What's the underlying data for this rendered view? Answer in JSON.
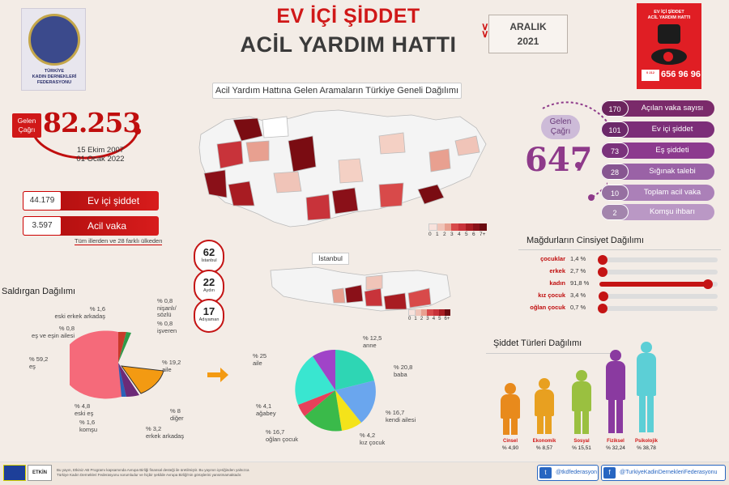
{
  "header": {
    "title_line1": "EV İÇİ ŞİDDET",
    "title_line2": "ACİL YARDIM HATTI",
    "month": "ARALIK",
    "year": "2021"
  },
  "logo": {
    "org_line1": "TÜRKİYE",
    "org_line2": "KADIN DERNEKLERİ",
    "org_line3": "FEDERASYONU"
  },
  "poster": {
    "title_line1": "EV İÇİ ŞİDDET",
    "title_line2": "ACİL YARDIM HATTI",
    "phone": "0 212 656 96 96"
  },
  "map_title": "Acil Yardım Hattına Gelen Aramaların Türkiye Geneli Dağılımı",
  "map_legend": [
    "0",
    "1",
    "2",
    "3",
    "4",
    "5",
    "6",
    "7+"
  ],
  "istanbul": {
    "label": "İstanbul",
    "legend": [
      "0",
      "1",
      "2",
      "3",
      "4",
      "5",
      "6+"
    ]
  },
  "total_calls": {
    "badge": "Gelen Çağrı",
    "value": "82.253",
    "date_from": "15 Ekim 2007",
    "date_to": "01 Ocak 2022",
    "items": [
      {
        "value": "44.179",
        "label": "Ev içi şiddet"
      },
      {
        "value": "3.597",
        "label": "Acil vaka"
      }
    ],
    "note": "Tüm illerden ve 28 farklı ülkeden"
  },
  "monthly_calls": {
    "badge": "Gelen Çağrı",
    "value": "647",
    "items": [
      {
        "value": "170",
        "label": "Açılan vaka sayısı",
        "color": "#7a2a6a"
      },
      {
        "value": "101",
        "label": "Ev içi şiddet",
        "color": "#7c2e78"
      },
      {
        "value": "73",
        "label": "Eş şiddeti",
        "color": "#8c3a8e"
      },
      {
        "value": "28",
        "label": "Sığınak talebi",
        "color": "#9a62a6"
      },
      {
        "value": "10",
        "label": "Toplam acil vaka",
        "color": "#ab80b8"
      },
      {
        "value": "2",
        "label": "Komşu ihbarı",
        "color": "#ba98c5"
      }
    ]
  },
  "city_stats": [
    {
      "value": "62",
      "label": "İstanbul"
    },
    {
      "value": "22",
      "label": "Aydın"
    },
    {
      "value": "17",
      "label": "Adıyaman"
    }
  ],
  "gender": {
    "title": "Mağdurların Cinsiyet Dağılımı",
    "rows": [
      {
        "label": "çocuklar",
        "pct": "1,4 %",
        "value": 1.4
      },
      {
        "label": "erkek",
        "pct": "2,7 %",
        "value": 2.7
      },
      {
        "label": "kadın",
        "pct": "91,8 %",
        "value": 91.8
      },
      {
        "label": "kız çocuk",
        "pct": "3,4 %",
        "value": 3.4
      },
      {
        "label": "oğlan çocuk",
        "pct": "0,7 %",
        "value": 0.7
      }
    ]
  },
  "aggressor": {
    "title": "Saldırgan Dağılımı",
    "labels": [
      {
        "pct": "% 1,6",
        "name": "eski erkek arkadaş"
      },
      {
        "pct": "% 0,8",
        "name": "eş ve eşin ailesi"
      },
      {
        "pct": "% 0,8",
        "name": "nişanlı/ sözlü"
      },
      {
        "pct": "% 0,8",
        "name": "işveren"
      },
      {
        "pct": "% 59,2",
        "name": "eş"
      },
      {
        "pct": "% 19,2",
        "name": "aile"
      },
      {
        "pct": "% 4,8",
        "name": "eski eş"
      },
      {
        "pct": "% 1,6",
        "name": "komşu"
      },
      {
        "pct": "% 8",
        "name": "diğer"
      },
      {
        "pct": "% 3,2",
        "name": "erkek arkadaş"
      }
    ]
  },
  "family": {
    "labels": [
      {
        "pct": "% 25",
        "name": "aile"
      },
      {
        "pct": "% 12,5",
        "name": "anne"
      },
      {
        "pct": "% 20,8",
        "name": "baba"
      },
      {
        "pct": "% 16,7",
        "name": "kendi ailesi"
      },
      {
        "pct": "% 4,2",
        "name": "kız çocuk"
      },
      {
        "pct": "% 16,7",
        "name": "oğlan çocuk"
      },
      {
        "pct": "% 4,1",
        "name": "ağabey"
      }
    ]
  },
  "violence_types": {
    "title": "Şiddet Türleri Dağılımı",
    "items": [
      {
        "name": "Cinsel",
        "pct": "% 4,90",
        "color": "#e88a1c"
      },
      {
        "name": "Ekonomik",
        "pct": "% 8,57",
        "color": "#e8a020"
      },
      {
        "name": "Sosyal",
        "pct": "% 15,51",
        "color": "#9ac040"
      },
      {
        "name": "Fiziksel",
        "pct": "% 32,24",
        "color": "#8a3aa0"
      },
      {
        "name": "Psikolojik",
        "pct": "% 38,78",
        "color": "#5ccfd6"
      }
    ]
  },
  "footer": {
    "etkin": "ETKİN",
    "disclaimer_line1": "Bu yayın, Etkiniz AB Programı kapsamında Avrupa Birliği finansal desteği ile üretilmiştir. Bu yayının içeriğinden yalnızca",
    "disclaimer_line2": "Türkiye Kadın Dernekleri Federasyonu sorumludur ve hiçbir şekilde Avrupa Birliği'nin görüşlerini yansıtmamaktadır.",
    "twitter": "@tkdfederasyon",
    "facebook": "@TurkiyeKadinDernekleriFederasyonu"
  }
}
